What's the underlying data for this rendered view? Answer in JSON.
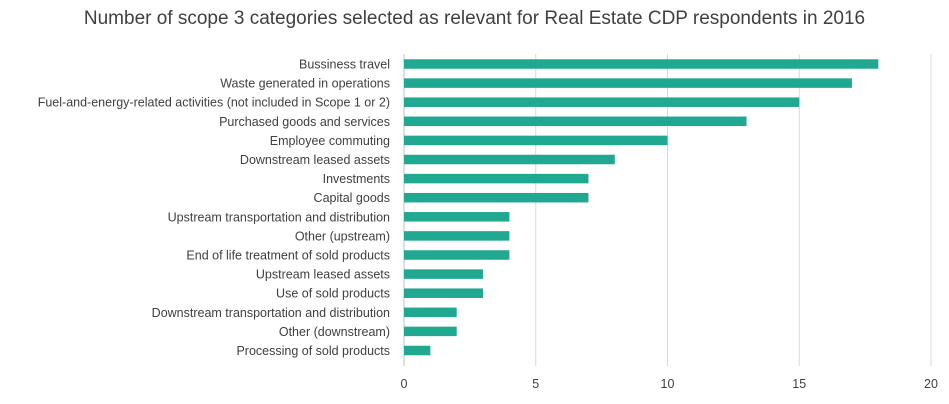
{
  "chart_data": {
    "type": "bar",
    "orientation": "horizontal",
    "title": "Number of scope 3 categories selected as relevant for Real Estate CDP respondents in 2016",
    "xlabel": "",
    "ylabel": "",
    "xlim": [
      0,
      20
    ],
    "xticks": [
      0,
      5,
      10,
      15,
      20
    ],
    "grid": true,
    "legend": "none",
    "bar_color": "#21A891",
    "categories": [
      "Bussiness travel",
      "Waste generated in operations",
      "Fuel-and-energy-related activities (not included in Scope 1 or 2)",
      "Purchased goods and services",
      "Employee commuting",
      "Downstream leased assets",
      "Investments",
      "Capital goods",
      "Upstream transportation and distribution",
      "Other (upstream)",
      "End of life treatment of sold products",
      "Upstream leased assets",
      "Use of sold products",
      "Downstream transportation and distribution",
      "Other (downstream)",
      "Processing of sold products"
    ],
    "values": [
      18,
      17,
      15,
      13,
      10,
      8,
      7,
      7,
      4,
      4,
      4,
      3,
      3,
      2,
      2,
      1
    ]
  }
}
